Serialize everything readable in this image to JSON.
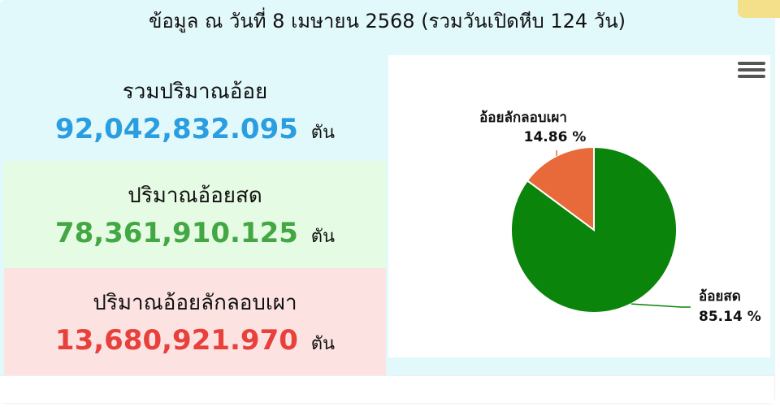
{
  "header": {
    "title": "ข้อมูล ณ วันที่ 8 เมษายน 2568 (รวมวันเปิดหีบ 124 วัน)"
  },
  "stats": [
    {
      "label": "รวมปริมาณอ้อย",
      "value": "92,042,832.095",
      "unit": "ตัน",
      "color": "#2a9ee0"
    },
    {
      "label": "ปริมาณอ้อยสด",
      "value": "78,361,910.125",
      "unit": "ตัน",
      "color": "#43a843"
    },
    {
      "label": "ปริมาณอ้อยลักลอบเผา",
      "value": "13,680,921.970",
      "unit": "ตัน",
      "color": "#e8403a"
    }
  ],
  "chart_data": {
    "type": "pie",
    "categories": [
      "อ้อยสด",
      "อ้อยลักลอบเผา"
    ],
    "values": [
      85.14,
      14.86
    ],
    "value_labels": [
      "85.14 %",
      "14.86 %"
    ],
    "colors": [
      "#0a840a",
      "#e8693a"
    ]
  },
  "menu": {
    "icon": "hamburger-menu-icon"
  }
}
